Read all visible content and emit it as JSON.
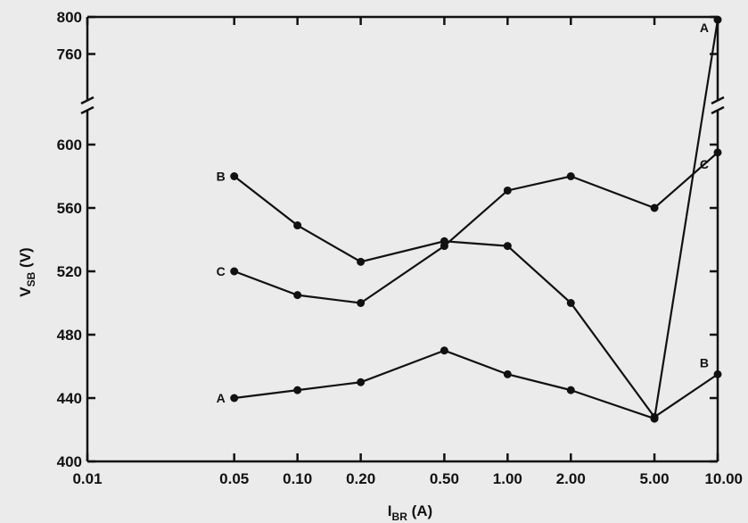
{
  "chart_data": {
    "type": "line",
    "xlabel": "I",
    "xlabel_sub": "BR",
    "xlabel_unit": " (A)",
    "ylabel": "V",
    "ylabel_sub": "SB",
    "ylabel_unit": " (V)",
    "x_scale": "log",
    "xlim": [
      0.01,
      10.0
    ],
    "x_ticks": [
      0.01,
      0.05,
      0.1,
      0.2,
      0.5,
      1.0,
      2.0,
      5.0,
      10.0
    ],
    "x_tick_labels": [
      "0.01",
      "0.05",
      "0.10",
      "0.20",
      "0.50",
      "1.00",
      "2.00",
      "5.00",
      "10.00"
    ],
    "y_axis_break": [
      600,
      740
    ],
    "ylim": [
      400,
      800
    ],
    "y_ticks": [
      400,
      440,
      480,
      520,
      560,
      600,
      760,
      800
    ],
    "y_tick_labels": [
      "400",
      "440",
      "480",
      "520",
      "560",
      "600",
      "760",
      "800"
    ],
    "grid": false,
    "x": [
      0.05,
      0.1,
      0.2,
      0.5,
      1.0,
      2.0,
      5.0,
      10.0
    ],
    "series": [
      {
        "name": "A",
        "values": [
          440,
          445,
          450,
          470,
          455,
          445,
          427,
          797
        ]
      },
      {
        "name": "B",
        "values": [
          580,
          549,
          526,
          539,
          536,
          500,
          428,
          455
        ]
      },
      {
        "name": "C",
        "values": [
          520,
          505,
          500,
          536,
          571,
          580,
          560,
          595
        ]
      }
    ]
  },
  "series_label_positions": {
    "A": {
      "start": "left",
      "end": "top-left"
    },
    "B": {
      "start": "left",
      "end": "top-left"
    },
    "C": {
      "start": "left",
      "end": "bottom-left"
    }
  }
}
